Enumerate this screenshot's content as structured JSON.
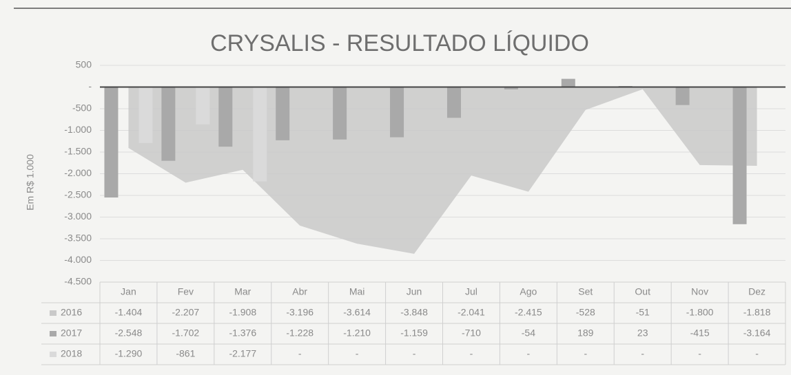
{
  "chart_data": {
    "type": "combo",
    "title": "CRYSALIS - RESULTADO LÍQUIDO",
    "y_label": "Em R$ 1.000",
    "categories": [
      "Jan",
      "Fev",
      "Mar",
      "Abr",
      "Mai",
      "Jun",
      "Jul",
      "Ago",
      "Set",
      "Out",
      "Nov",
      "Dez"
    ],
    "series": [
      {
        "name": "2016",
        "type": "area",
        "color": "#c9c9c9",
        "values": [
          -1404,
          -2207,
          -1908,
          -3196,
          -3614,
          -3848,
          -2041,
          -2415,
          -528,
          -51,
          -1800,
          -1818
        ],
        "value_labels": [
          "-1.404",
          "-2.207",
          "-1.908",
          "-3.196",
          "-3.614",
          "-3.848",
          "-2.041",
          "-2.415",
          "-528",
          "-51",
          "-1.800",
          "-1.818"
        ]
      },
      {
        "name": "2017",
        "type": "bar",
        "color": "#a9a9a9",
        "values": [
          -2548,
          -1702,
          -1376,
          -1228,
          -1210,
          -1159,
          -710,
          -54,
          189,
          23,
          -415,
          -3164
        ],
        "value_labels": [
          "-2.548",
          "-1.702",
          "-1.376",
          "-1.228",
          "-1.210",
          "-1.159",
          "-710",
          "-54",
          "189",
          "23",
          "-415",
          "-3.164"
        ]
      },
      {
        "name": "2018",
        "type": "bar",
        "color": "#dadada",
        "values": [
          -1290,
          -861,
          -2177,
          null,
          null,
          null,
          null,
          null,
          null,
          null,
          null,
          null
        ],
        "value_labels": [
          "-1.290",
          "-861",
          "-2.177",
          "-",
          "-",
          "-",
          "-",
          "-",
          "-",
          "-",
          "-",
          "-"
        ]
      }
    ],
    "ylim": [
      -4500,
      500
    ],
    "yticks": [
      500,
      {
        "value": 0,
        "label": "-"
      },
      -500,
      {
        "value": -1000,
        "label": "-1.000"
      },
      {
        "value": -1500,
        "label": "-1.500"
      },
      {
        "value": -2000,
        "label": "-2.000"
      },
      {
        "value": -2500,
        "label": "-2.500"
      },
      {
        "value": -3000,
        "label": "-3.000"
      },
      {
        "value": -3500,
        "label": "-3.500"
      },
      {
        "value": -4000,
        "label": "-4.000"
      },
      {
        "value": -4500,
        "label": "-4.500"
      }
    ],
    "grid": true
  }
}
